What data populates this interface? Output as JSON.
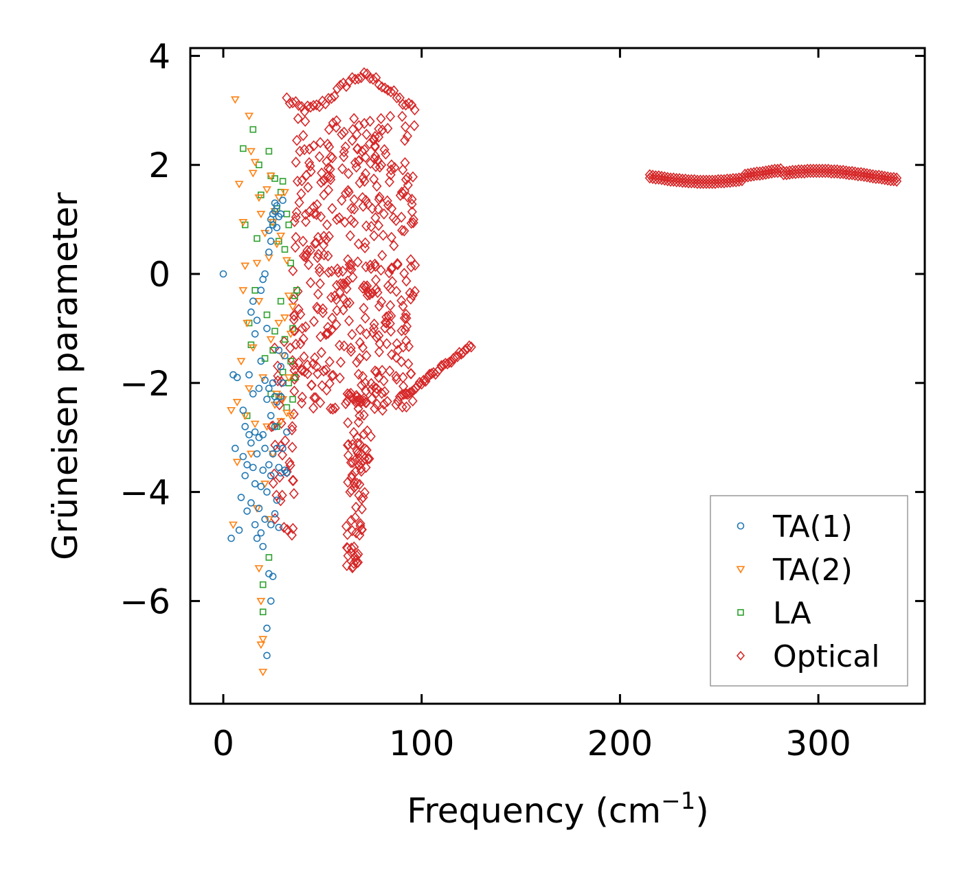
{
  "chart_data": {
    "type": "scatter",
    "title": "",
    "xlabel": "Frequency (cm",
    "xlabel_sup": "−1",
    "xlabel_end": ")",
    "ylabel": "Grüneisen parameter",
    "xlim": [
      -17,
      355
    ],
    "ylim": [
      -7.8,
      4.2
    ],
    "xticks": [
      0,
      100,
      200,
      300
    ],
    "xtick_labels": [
      "0",
      "100",
      "200",
      "300"
    ],
    "yticks": [
      4,
      2,
      0,
      -2,
      -4,
      -6
    ],
    "ytick_labels": [
      "4",
      "2",
      "0",
      "−2",
      "−4",
      "−6"
    ],
    "legend_position": "lower-right",
    "series": [
      {
        "name": "TA(1)",
        "marker": "circle",
        "color": "#1f77b4",
        "points": [
          [
            0,
            0
          ],
          [
            4,
            -4.85
          ],
          [
            5,
            -1.85
          ],
          [
            6,
            -3.2
          ],
          [
            7,
            -1.9
          ],
          [
            8,
            -4.7
          ],
          [
            9,
            -4.1
          ],
          [
            10,
            -2.5
          ],
          [
            10,
            -3.35
          ],
          [
            11,
            -3.7
          ],
          [
            11,
            -2.8
          ],
          [
            12,
            -4.35
          ],
          [
            12,
            -3.5
          ],
          [
            13,
            -2.95
          ],
          [
            13,
            -1.85
          ],
          [
            14,
            -4.2
          ],
          [
            14,
            -3.1
          ],
          [
            14,
            -0.7
          ],
          [
            15,
            -3.55
          ],
          [
            15,
            -2.2
          ],
          [
            15,
            -0.5
          ],
          [
            16,
            -4.6
          ],
          [
            16,
            -3.85
          ],
          [
            16,
            -2.9
          ],
          [
            16,
            -1.1
          ],
          [
            17,
            -4.85
          ],
          [
            17,
            -3.3
          ],
          [
            17,
            -0.85
          ],
          [
            18,
            -4.3
          ],
          [
            18,
            -3.0
          ],
          [
            18,
            -2.1
          ],
          [
            19,
            -4.75
          ],
          [
            19,
            -3.9
          ],
          [
            19,
            -1.6
          ],
          [
            19,
            -0.3
          ],
          [
            20,
            -5.0
          ],
          [
            20,
            -3.6
          ],
          [
            20,
            -2.95
          ],
          [
            20,
            -0.1
          ],
          [
            21,
            -4.5
          ],
          [
            21,
            -3.2
          ],
          [
            21,
            -1.95
          ],
          [
            21,
            0.0
          ],
          [
            22,
            -6.5
          ],
          [
            22,
            -7.0
          ],
          [
            22,
            -4.0
          ],
          [
            22,
            -2.3
          ],
          [
            22,
            -1.0
          ],
          [
            23,
            -5.5
          ],
          [
            23,
            -3.5
          ],
          [
            23,
            -2.1
          ],
          [
            23,
            0.4
          ],
          [
            23,
            0.8
          ],
          [
            24,
            -6.0
          ],
          [
            24,
            -4.6
          ],
          [
            24,
            -3.7
          ],
          [
            24,
            -2.6
          ],
          [
            24,
            0.6
          ],
          [
            24,
            1.0
          ],
          [
            25,
            -5.55
          ],
          [
            25,
            -3.3
          ],
          [
            25,
            -2.0
          ],
          [
            25,
            0.9
          ],
          [
            25,
            1.1
          ],
          [
            26,
            -4.4
          ],
          [
            26,
            -2.8
          ],
          [
            26,
            -2.25
          ],
          [
            26,
            1.15
          ],
          [
            26,
            1.3
          ],
          [
            27,
            -4.15
          ],
          [
            27,
            -3.2
          ],
          [
            27,
            -2.35
          ],
          [
            27,
            1.25
          ],
          [
            27,
            0.85
          ],
          [
            28,
            -4.65
          ],
          [
            28,
            -3.55
          ],
          [
            28,
            -1.4
          ],
          [
            28,
            1.05
          ],
          [
            29,
            -3.65
          ],
          [
            29,
            -1.7
          ],
          [
            29,
            -2.25
          ],
          [
            29,
            1.1
          ],
          [
            30,
            -3.2
          ],
          [
            30,
            -2.0
          ],
          [
            30,
            1.35
          ],
          [
            31,
            -3.6
          ],
          [
            31,
            -1.5
          ],
          [
            32,
            -2.9
          ],
          [
            32,
            -3.65
          ]
        ]
      },
      {
        "name": "TA(2)",
        "marker": "triangle-down",
        "color": "#ff7f0e",
        "points": [
          [
            4,
            -2.5
          ],
          [
            5,
            -4.6
          ],
          [
            6,
            3.2
          ],
          [
            7,
            -2.35
          ],
          [
            7,
            -3.45
          ],
          [
            8,
            1.65
          ],
          [
            9,
            -1.6
          ],
          [
            10,
            0.95
          ],
          [
            10,
            -0.3
          ],
          [
            11,
            0.15
          ],
          [
            11,
            -2.6
          ],
          [
            12,
            -0.9
          ],
          [
            13,
            2.9
          ],
          [
            13,
            -2.1
          ],
          [
            14,
            2.25
          ],
          [
            14,
            -3.3
          ],
          [
            15,
            1.85
          ],
          [
            15,
            -1.35
          ],
          [
            16,
            2.05
          ],
          [
            16,
            -2.75
          ],
          [
            17,
            0.2
          ],
          [
            17,
            -4.3
          ],
          [
            18,
            1.4
          ],
          [
            18,
            -5.4
          ],
          [
            18,
            -0.5
          ],
          [
            19,
            1.1
          ],
          [
            19,
            -6.8
          ],
          [
            19,
            -6.0
          ],
          [
            20,
            -7.3
          ],
          [
            20,
            -6.7
          ],
          [
            20,
            -1.9
          ],
          [
            21,
            0.75
          ],
          [
            21,
            -3.85
          ],
          [
            22,
            1.55
          ],
          [
            22,
            -2.8
          ],
          [
            23,
            0.3
          ],
          [
            23,
            -4.5
          ],
          [
            24,
            1.8
          ],
          [
            24,
            -1.2
          ],
          [
            25,
            0.95
          ],
          [
            25,
            -3.3
          ],
          [
            26,
            1.15
          ],
          [
            26,
            -2.4
          ],
          [
            27,
            0.55
          ],
          [
            27,
            -2.2
          ],
          [
            28,
            1.4
          ],
          [
            28,
            -0.9
          ],
          [
            29,
            -2.7
          ],
          [
            29,
            0.7
          ],
          [
            30,
            -1.5
          ],
          [
            30,
            -2.3
          ],
          [
            31,
            1.5
          ],
          [
            31,
            -0.8
          ],
          [
            32,
            0.25
          ],
          [
            32,
            -2.55
          ],
          [
            33,
            -1.9
          ],
          [
            33,
            -0.4
          ],
          [
            34,
            -2.6
          ],
          [
            34,
            -1.1
          ],
          [
            35,
            -0.6
          ]
        ]
      },
      {
        "name": "LA",
        "marker": "square",
        "color": "#2ca02c",
        "points": [
          [
            10,
            2.3
          ],
          [
            11,
            0.9
          ],
          [
            12,
            -2.6
          ],
          [
            13,
            -0.9
          ],
          [
            14,
            -1.3
          ],
          [
            15,
            2.65
          ],
          [
            16,
            -0.3
          ],
          [
            17,
            0.65
          ],
          [
            18,
            2.0
          ],
          [
            19,
            1.45
          ],
          [
            20,
            -5.7
          ],
          [
            20,
            -6.2
          ],
          [
            21,
            -1.55
          ],
          [
            22,
            -0.75
          ],
          [
            23,
            2.25
          ],
          [
            23,
            -5.2
          ],
          [
            24,
            1.8
          ],
          [
            24,
            -2.2
          ],
          [
            25,
            0.95
          ],
          [
            25,
            -1.4
          ],
          [
            26,
            1.75
          ],
          [
            26,
            -1.05
          ],
          [
            27,
            1.2
          ],
          [
            27,
            -2.8
          ],
          [
            28,
            0.6
          ],
          [
            28,
            -2.25
          ],
          [
            29,
            1.5
          ],
          [
            29,
            -0.5
          ],
          [
            30,
            1.7
          ],
          [
            30,
            -1.8
          ],
          [
            31,
            0.45
          ],
          [
            31,
            -1.2
          ],
          [
            32,
            1.1
          ],
          [
            32,
            -2.45
          ],
          [
            33,
            0.9
          ],
          [
            33,
            -2.0
          ],
          [
            34,
            -1.6
          ],
          [
            34,
            0.2
          ],
          [
            35,
            -1.0
          ],
          [
            35,
            -2.3
          ],
          [
            36,
            -0.4
          ],
          [
            36,
            -1.9
          ],
          [
            37,
            -0.3
          ]
        ]
      },
      {
        "name": "Optical",
        "marker": "diamond",
        "color": "#d62728",
        "points": []
      }
    ]
  }
}
